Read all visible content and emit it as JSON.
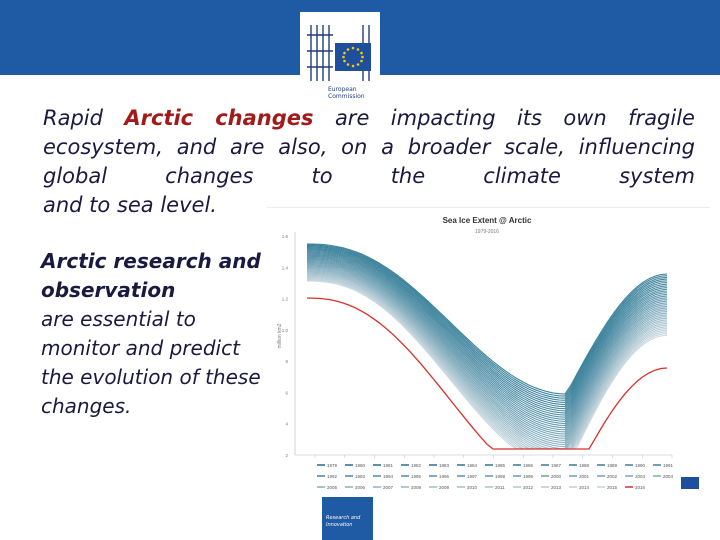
{
  "header": {
    "logo_name": "European Commission",
    "logo_text_line1": "European",
    "logo_text_line2": "Commission"
  },
  "body_text": {
    "para1_before": "Rapid ",
    "para1_highlight": "Arctic changes",
    "para1_rest_line1": " are impacting its own fragile ecosystem, also, on a broader scale, influencing global changes to the climate system",
    "para1_line1": "are impacting its own fragile",
    "para1_line2": "ecosystem,  and  are  also,  on  a  broader  scale,",
    "para1_line3": "influencing  global  changes  to  the  climate  system",
    "para1_line4": "and to sea level.",
    "side_bold": "Arctic research and observation",
    "side_normal": "are essential to monitor and predict the evolution of these changes."
  },
  "chart_data": {
    "type": "line",
    "title": "Sea Ice Extent @ Arctic",
    "subtitle": "1979-2016",
    "ylabel": "million km2",
    "y_ticks": [
      "1.6",
      "1.4",
      "1.2",
      "1.0",
      "8",
      "6",
      "4",
      "2"
    ],
    "legend": [
      "1979",
      "1980",
      "1981",
      "1982",
      "1983",
      "1984",
      "1985",
      "1986",
      "1987",
      "1988",
      "1989",
      "1990",
      "1991",
      "1992",
      "1993",
      "1994",
      "1995",
      "1996",
      "1997",
      "1998",
      "1999",
      "2000",
      "2001",
      "2002",
      "2003",
      "2004",
      "2005",
      "2006",
      "2007",
      "2008",
      "2009",
      "2010",
      "2011",
      "2012",
      "2013",
      "2014",
      "2015",
      "2016"
    ],
    "series_colors": {
      "early": "#1c6e8c",
      "late": "#c8d6de",
      "highlight": "#d8302a"
    },
    "highlight_series": "2016"
  },
  "footer": {
    "line1": "Research and",
    "line2": "Innovation"
  }
}
